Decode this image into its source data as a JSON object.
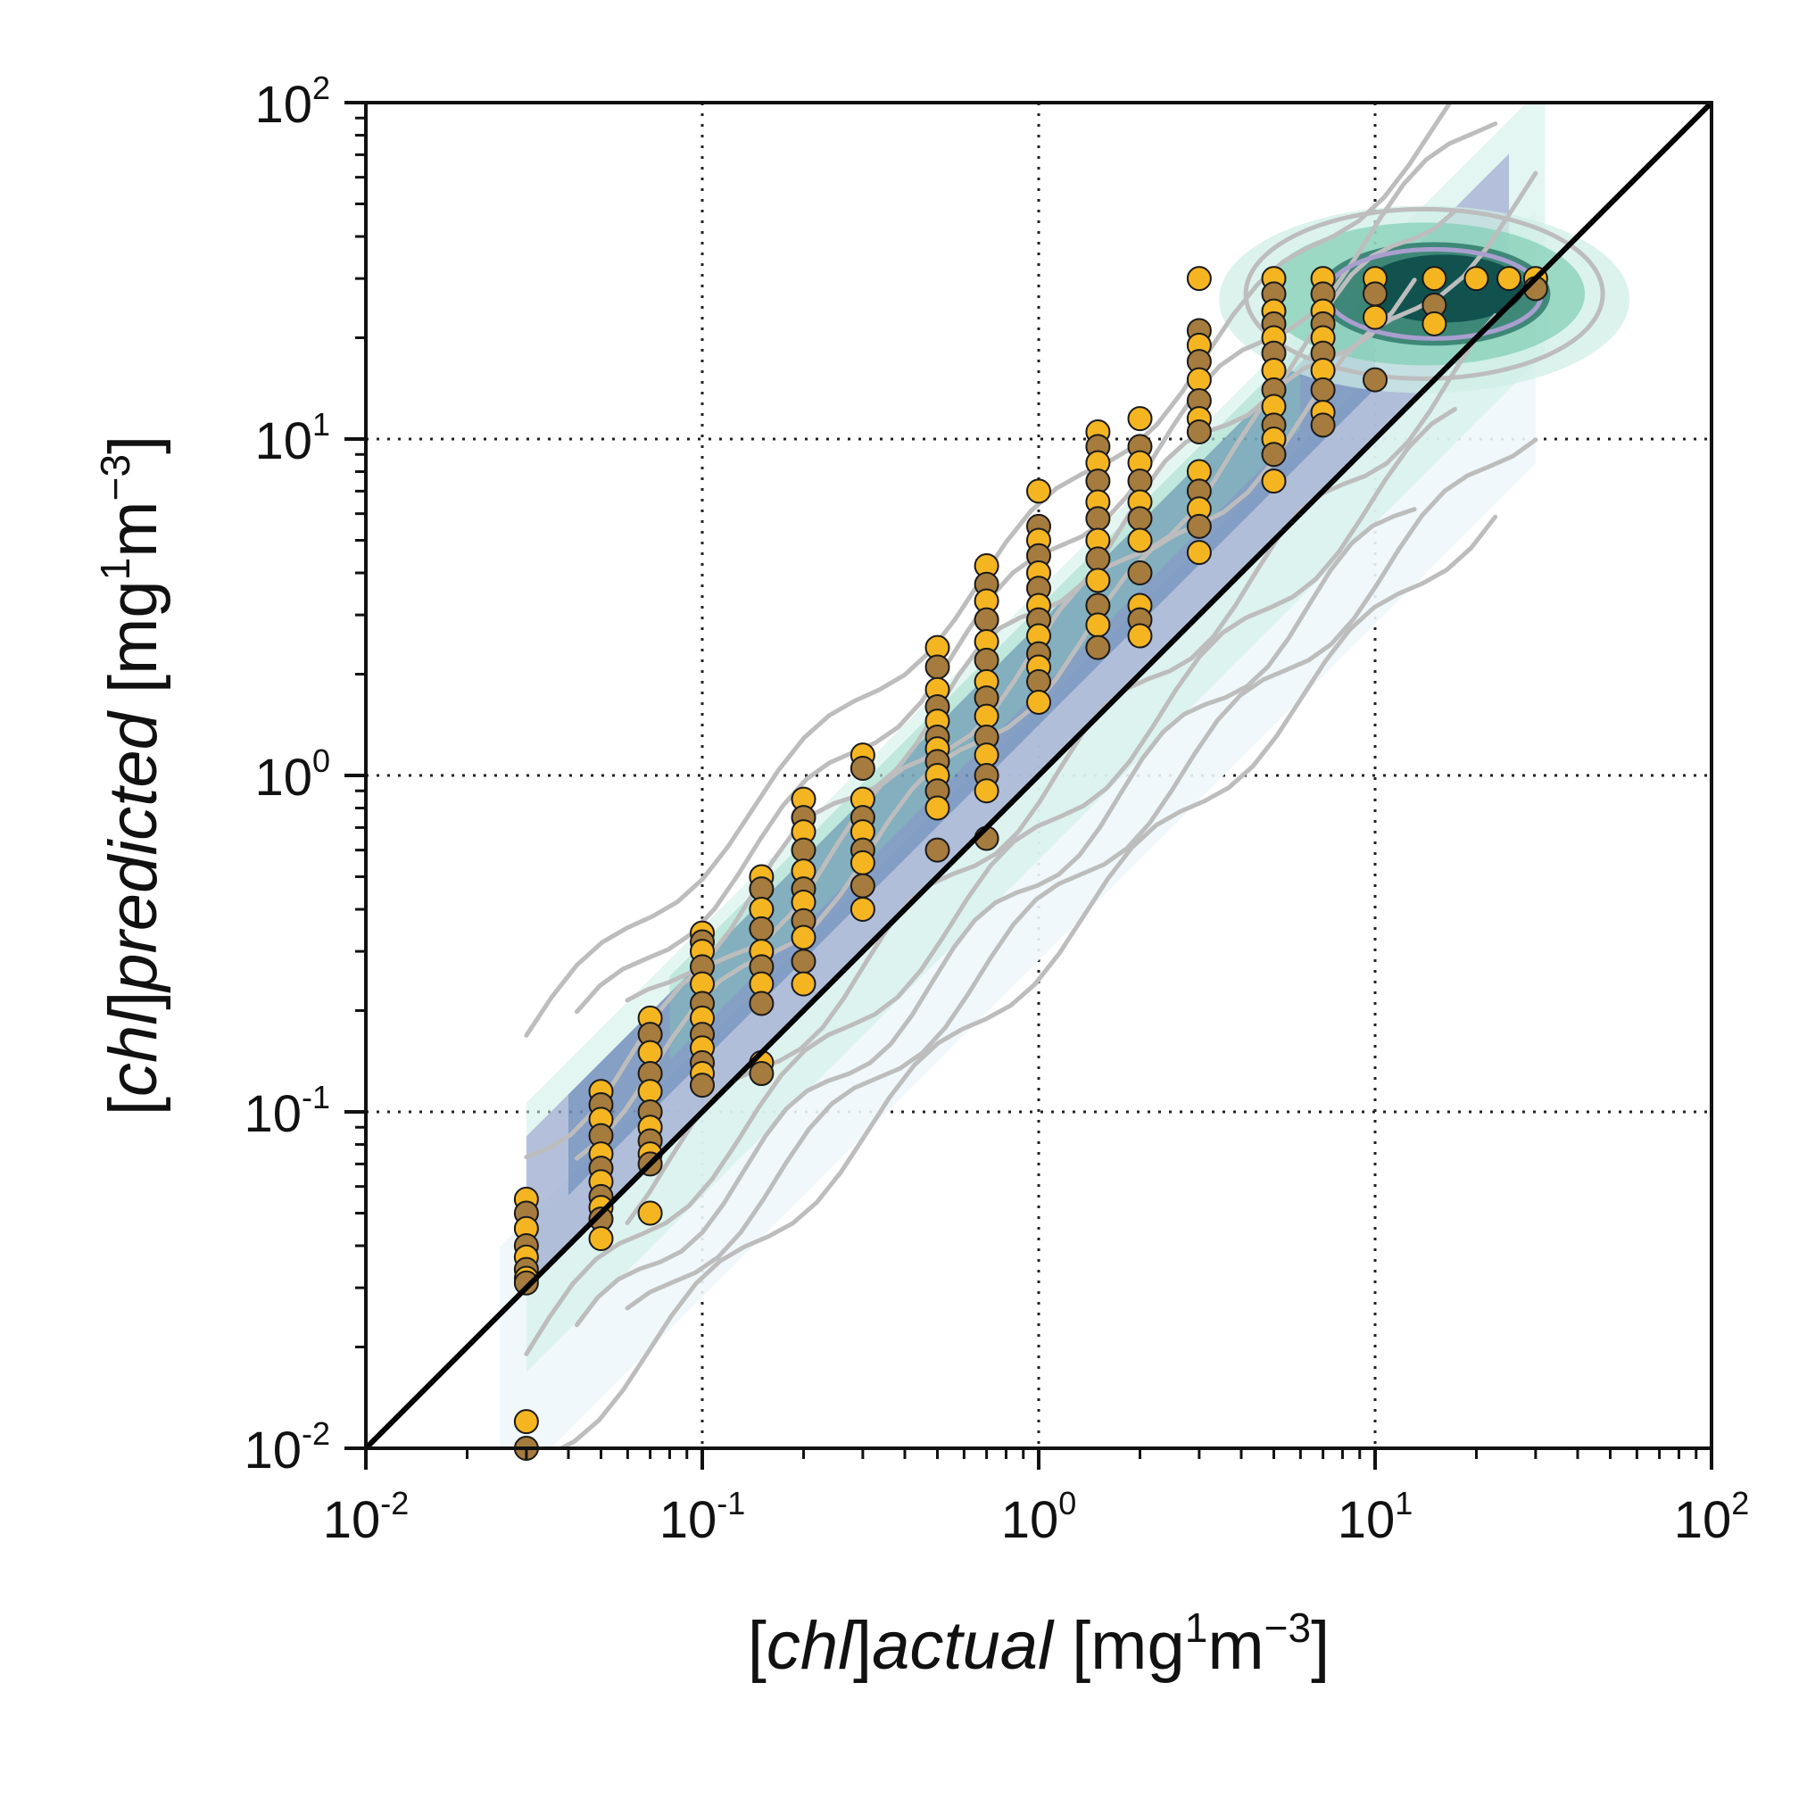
{
  "chart_data": {
    "type": "scatter",
    "x_scale": "log",
    "y_scale": "log",
    "xlim": [
      0.01,
      100
    ],
    "ylim": [
      0.01,
      100
    ],
    "grid": true,
    "x_ticks": [
      {
        "base": "10",
        "exp": "-2"
      },
      {
        "base": "10",
        "exp": "-1"
      },
      {
        "base": "10",
        "exp": "0"
      },
      {
        "base": "10",
        "exp": "1"
      },
      {
        "base": "10",
        "exp": "2"
      }
    ],
    "y_ticks": [
      {
        "base": "10",
        "exp": "-2"
      },
      {
        "base": "10",
        "exp": "-1"
      },
      {
        "base": "10",
        "exp": "0"
      },
      {
        "base": "10",
        "exp": "1"
      },
      {
        "base": "10",
        "exp": "2"
      }
    ],
    "xlabel": {
      "bracket_open": "[",
      "italic1": "chl",
      "bracket_close": "]",
      "italic2": "actual",
      "unit_pre": " [mg",
      "sup1": "1",
      "unit_mid": "m",
      "sup2": "−3",
      "unit_post": "]"
    },
    "ylabel": {
      "bracket_open": "[",
      "italic1": "chl",
      "bracket_close": "]",
      "italic2": "predicted",
      "unit_pre": " [mg",
      "sup1": "1",
      "unit_mid": "m",
      "sup2": "−3",
      "unit_post": "]"
    },
    "reference_line": {
      "type": "1:1",
      "from": [
        0.01,
        0.01
      ],
      "to": [
        100,
        100
      ],
      "color": "#000000"
    },
    "colors": {
      "marker_a": "#F5B521",
      "marker_b": "#A57B3E",
      "marker_edge": "#1a1a1a",
      "contour_line": "#bdbdbd",
      "density_light": "#cdeee5",
      "density_mid": "#7fcdb4",
      "density_dark": "#0f4f4c",
      "density_purple": "#7b7fc0",
      "density_blue": "#4e78a8"
    },
    "series": [
      {
        "x": 0.03,
        "y": [
          0.055,
          0.05,
          0.045,
          0.04,
          0.037,
          0.034,
          0.032,
          0.031,
          0.012,
          0.01
        ],
        "color": "mixed"
      },
      {
        "x": 0.05,
        "y": [
          0.115,
          0.105,
          0.095,
          0.085,
          0.075,
          0.068,
          0.062,
          0.056,
          0.052,
          0.048,
          0.042
        ],
        "color": "mixed"
      },
      {
        "x": 0.07,
        "y": [
          0.19,
          0.17,
          0.15,
          0.13,
          0.115,
          0.1,
          0.09,
          0.082,
          0.075,
          0.07,
          0.05
        ],
        "color": "mixed"
      },
      {
        "x": 0.1,
        "y": [
          0.34,
          0.32,
          0.3,
          0.27,
          0.24,
          0.21,
          0.19,
          0.17,
          0.155,
          0.14,
          0.13,
          0.12
        ],
        "color": "mixed"
      },
      {
        "x": 0.15,
        "y": [
          0.5,
          0.46,
          0.4,
          0.35,
          0.3,
          0.27,
          0.24,
          0.21,
          0.14,
          0.13
        ],
        "color": "mixed"
      },
      {
        "x": 0.2,
        "y": [
          0.85,
          0.75,
          0.68,
          0.6,
          0.52,
          0.46,
          0.42,
          0.37,
          0.33,
          0.28,
          0.24
        ],
        "color": "mixed"
      },
      {
        "x": 0.3,
        "y": [
          1.15,
          1.05,
          0.85,
          0.75,
          0.68,
          0.6,
          0.55,
          0.47,
          0.4
        ],
        "color": "mixed"
      },
      {
        "x": 0.5,
        "y": [
          2.4,
          2.1,
          1.8,
          1.6,
          1.45,
          1.3,
          1.2,
          1.1,
          1.0,
          0.9,
          0.8,
          0.6
        ],
        "color": "mixed"
      },
      {
        "x": 0.7,
        "y": [
          4.2,
          3.7,
          3.3,
          2.9,
          2.5,
          2.2,
          1.9,
          1.7,
          1.5,
          1.3,
          1.15,
          1.0,
          0.9,
          0.65
        ],
        "color": "mixed"
      },
      {
        "x": 1.0,
        "y": [
          7.0,
          5.5,
          5.0,
          4.5,
          4.0,
          3.6,
          3.2,
          2.9,
          2.6,
          2.3,
          2.1,
          1.9,
          1.65
        ],
        "color": "mixed"
      },
      {
        "x": 1.5,
        "y": [
          10.5,
          9.5,
          8.5,
          7.5,
          6.5,
          5.8,
          5.0,
          4.4,
          3.8,
          3.2,
          2.8,
          2.4
        ],
        "color": "mixed"
      },
      {
        "x": 2.0,
        "y": [
          11.5,
          9.5,
          8.5,
          7.5,
          6.5,
          5.8,
          5.0,
          4.0,
          3.2,
          2.9,
          2.6
        ],
        "color": "mixed"
      },
      {
        "x": 3.0,
        "y": [
          30.0,
          21.0,
          19.0,
          17.0,
          15.0,
          13.0,
          11.5,
          10.5,
          8.0,
          7.0,
          6.2,
          5.5,
          4.6
        ],
        "color": "mixed"
      },
      {
        "x": 5.0,
        "y": [
          30.0,
          27.0,
          24.0,
          22.0,
          20.0,
          18.0,
          16.0,
          14.0,
          12.5,
          11.0,
          10.0,
          9.0,
          7.5
        ],
        "color": "mixed"
      },
      {
        "x": 7.0,
        "y": [
          30.0,
          27.0,
          24.0,
          22.0,
          20.0,
          18.0,
          16.0,
          14.0,
          12.0,
          11.0
        ],
        "color": "mixed"
      },
      {
        "x": 10.0,
        "y": [
          30.0,
          27.0,
          23.0,
          15.0
        ],
        "color": "mixed"
      },
      {
        "x": 15.0,
        "y": [
          30.0,
          25.0,
          22.0
        ],
        "color": "mixed"
      },
      {
        "x": 20.0,
        "y": [
          30.0
        ],
        "color": "mixed"
      },
      {
        "x": 25.0,
        "y": [
          30.0
        ],
        "color": "mixed"
      },
      {
        "x": 30.0,
        "y": [
          30.0,
          28.0
        ],
        "color": "mixed"
      }
    ]
  }
}
